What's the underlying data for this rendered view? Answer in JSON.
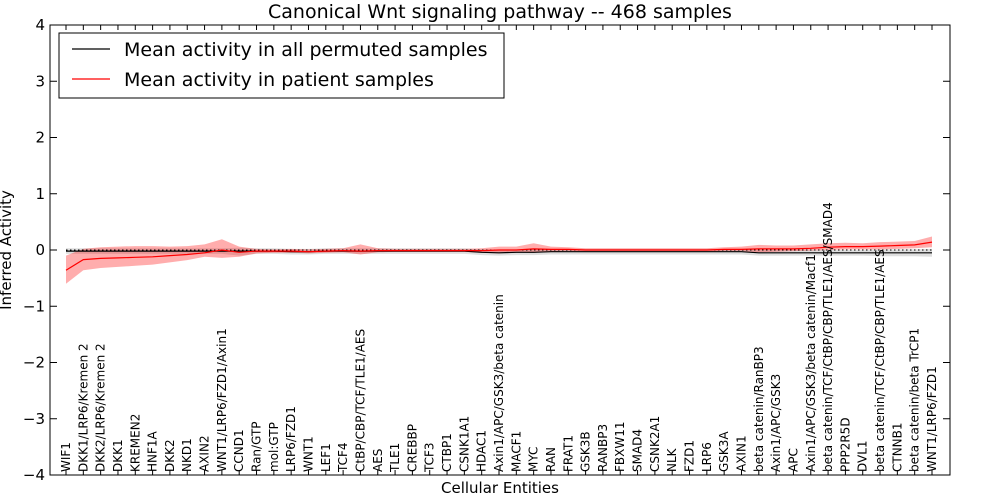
{
  "chart_data": {
    "type": "line",
    "title": "Canonical Wnt signaling pathway -- 468 samples",
    "xlabel": "Cellular Entities",
    "ylabel": "Inferred Activity",
    "ylim": [
      -4,
      4
    ],
    "yticks": [
      -4,
      -3,
      -2,
      -1,
      0,
      1,
      2,
      3,
      4
    ],
    "ytick_labels": [
      "−4",
      "−3",
      "−2",
      "−1",
      "0",
      "1",
      "2",
      "3",
      "4"
    ],
    "legend_position": "top-left",
    "reference_line": {
      "y": 0,
      "style": "dotted"
    },
    "categories": [
      "WIF1",
      "DKK1/LRP6/Kremen 2",
      "DKK2/LRP6/Kremen 2",
      "DKK1",
      "KREMEN2",
      "HNF1A",
      "DKK2",
      "NKD1",
      "AXIN2",
      "WNT1/LRP6/FZD1/Axin1",
      "CCND1",
      "Ran/GTP",
      "mol:GTP",
      "LRP6/FZD1",
      "WNT1",
      "LEF1",
      "TCF4",
      "CtBP/CBP/TCF/TLE1/AES",
      "AES",
      "TLE1",
      "CREBBP",
      "TCF3",
      "CTBP1",
      "CSNK1A1",
      "HDAC1",
      "Axin1/APC/GSK3/beta catenin",
      "MACF1",
      "MYC",
      "RAN",
      "FRAT1",
      "GSK3B",
      "RANBP3",
      "FBXW11",
      "SMAD4",
      "CSNK2A1",
      "NLK",
      "FZD1",
      "LRP6",
      "GSK3A",
      "AXIN1",
      "beta catenin/RanBP3",
      "Axin1/APC/GSK3",
      "APC",
      "Axin1/APC/GSK3/beta catenin/Macf1",
      "beta catenin/TCF/CtBP/CBP/TLE1/AES/SMAD4",
      "PPP2R5D",
      "DVL1",
      "beta catenin/TCF/CtBP/CBP/TLE1/AES",
      "CTNNB1",
      "beta catenin/beta TrCP1",
      "WNT1/LRP6/FZD1"
    ],
    "series": [
      {
        "name": "Mean activity in all permuted samples",
        "color": "#000000",
        "values": [
          -0.02,
          -0.02,
          -0.02,
          -0.02,
          -0.02,
          -0.02,
          -0.02,
          -0.02,
          -0.02,
          -0.02,
          -0.02,
          -0.02,
          -0.02,
          -0.03,
          -0.03,
          -0.02,
          -0.02,
          -0.02,
          -0.02,
          -0.02,
          -0.02,
          -0.02,
          -0.02,
          -0.02,
          -0.04,
          -0.05,
          -0.04,
          -0.04,
          -0.03,
          -0.03,
          -0.03,
          -0.03,
          -0.03,
          -0.03,
          -0.03,
          -0.03,
          -0.03,
          -0.03,
          -0.03,
          -0.03,
          -0.05,
          -0.05,
          -0.05,
          -0.05,
          -0.05,
          -0.05,
          -0.05,
          -0.05,
          -0.05,
          -0.05,
          -0.05
        ],
        "band_lower": [
          -0.07,
          -0.07,
          -0.07,
          -0.07,
          -0.07,
          -0.07,
          -0.07,
          -0.07,
          -0.07,
          -0.07,
          -0.1,
          -0.07,
          -0.07,
          -0.08,
          -0.08,
          -0.07,
          -0.07,
          -0.07,
          -0.07,
          -0.07,
          -0.07,
          -0.07,
          -0.07,
          -0.07,
          -0.09,
          -0.1,
          -0.09,
          -0.09,
          -0.08,
          -0.08,
          -0.08,
          -0.08,
          -0.08,
          -0.08,
          -0.08,
          -0.08,
          -0.08,
          -0.08,
          -0.08,
          -0.08,
          -0.1,
          -0.1,
          -0.1,
          -0.1,
          -0.1,
          -0.1,
          -0.1,
          -0.11,
          -0.11,
          -0.11,
          -0.12
        ],
        "band_upper": [
          0.03,
          0.03,
          0.03,
          0.03,
          0.03,
          0.03,
          0.03,
          0.03,
          0.03,
          0.03,
          0.04,
          0.03,
          0.03,
          0.02,
          0.02,
          0.03,
          0.03,
          0.03,
          0.03,
          0.03,
          0.03,
          0.03,
          0.03,
          0.03,
          0.01,
          0.0,
          0.01,
          0.01,
          0.02,
          0.02,
          0.02,
          0.02,
          0.02,
          0.02,
          0.02,
          0.02,
          0.02,
          0.02,
          0.02,
          0.02,
          0.0,
          0.0,
          0.0,
          0.0,
          0.0,
          0.0,
          0.0,
          0.01,
          0.01,
          0.01,
          0.02
        ]
      },
      {
        "name": "Mean activity in patient samples",
        "color": "#ff0000",
        "values": [
          -0.36,
          -0.17,
          -0.15,
          -0.14,
          -0.13,
          -0.12,
          -0.1,
          -0.08,
          -0.05,
          0.0,
          -0.04,
          -0.02,
          -0.02,
          -0.02,
          -0.03,
          -0.02,
          -0.01,
          -0.02,
          -0.01,
          -0.01,
          -0.01,
          -0.01,
          -0.01,
          -0.01,
          -0.01,
          0.0,
          0.0,
          0.02,
          0.01,
          0.01,
          0.0,
          0.0,
          0.0,
          0.0,
          0.0,
          0.0,
          0.0,
          0.0,
          0.01,
          0.01,
          0.02,
          0.02,
          0.02,
          0.03,
          0.05,
          0.06,
          0.06,
          0.07,
          0.08,
          0.09,
          0.14
        ],
        "band_lower": [
          -0.6,
          -0.36,
          -0.32,
          -0.3,
          -0.28,
          -0.26,
          -0.22,
          -0.18,
          -0.12,
          -0.14,
          -0.12,
          -0.06,
          -0.05,
          -0.05,
          -0.06,
          -0.05,
          -0.04,
          -0.08,
          -0.04,
          -0.03,
          -0.03,
          -0.03,
          -0.03,
          -0.03,
          -0.05,
          -0.06,
          -0.04,
          -0.05,
          -0.03,
          -0.02,
          -0.02,
          -0.02,
          -0.02,
          -0.02,
          -0.02,
          -0.02,
          -0.02,
          -0.02,
          -0.02,
          -0.02,
          -0.04,
          -0.03,
          -0.02,
          -0.01,
          0.0,
          0.01,
          0.01,
          0.01,
          0.02,
          0.03,
          0.05
        ],
        "band_upper": [
          -0.1,
          0.02,
          0.05,
          0.06,
          0.07,
          0.07,
          0.06,
          0.07,
          0.1,
          0.19,
          0.06,
          0.02,
          0.01,
          0.02,
          0.01,
          0.02,
          0.03,
          0.1,
          0.03,
          0.02,
          0.02,
          0.02,
          0.02,
          0.02,
          0.03,
          0.06,
          0.06,
          0.12,
          0.06,
          0.05,
          0.03,
          0.03,
          0.03,
          0.03,
          0.03,
          0.03,
          0.03,
          0.03,
          0.05,
          0.06,
          0.09,
          0.08,
          0.08,
          0.1,
          0.12,
          0.13,
          0.12,
          0.14,
          0.15,
          0.16,
          0.24
        ]
      }
    ]
  }
}
